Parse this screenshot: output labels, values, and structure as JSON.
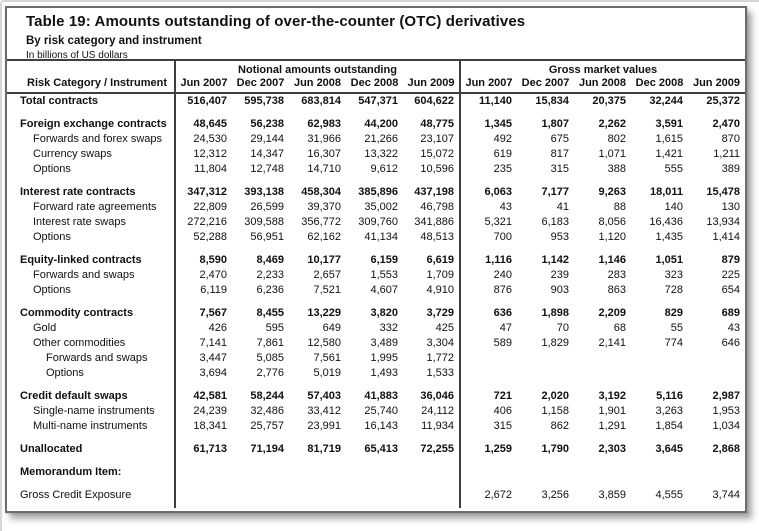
{
  "card": {
    "title": "Table 19: Amounts outstanding of over-the-counter (OTC) derivatives",
    "subtitle": "By risk category and instrument",
    "unit_note": "In billions of US dollars"
  },
  "table": {
    "row_header": "Risk Category / Instrument",
    "group_headers": [
      "Notional amounts outstanding",
      "Gross market values"
    ],
    "columns": [
      "Jun 2007",
      "Dec 2007",
      "Jun 2008",
      "Dec 2008",
      "Jun 2009"
    ],
    "rows": [
      {
        "label": "Total contracts",
        "cls": "bold",
        "notional": [
          "516,407",
          "595,738",
          "683,814",
          "547,371",
          "604,622"
        ],
        "gmv": [
          "11,140",
          "15,834",
          "20,375",
          "32,244",
          "25,372"
        ]
      },
      {
        "label": "Foreign exchange contracts",
        "cls": "bold gap",
        "notional": [
          "48,645",
          "56,238",
          "62,983",
          "44,200",
          "48,775"
        ],
        "gmv": [
          "1,345",
          "1,807",
          "2,262",
          "3,591",
          "2,470"
        ]
      },
      {
        "label": "Forwards and forex swaps",
        "cls": "ind1",
        "notional": [
          "24,530",
          "29,144",
          "31,966",
          "21,266",
          "23,107"
        ],
        "gmv": [
          "492",
          "675",
          "802",
          "1,615",
          "870"
        ]
      },
      {
        "label": "Currency swaps",
        "cls": "ind1",
        "notional": [
          "12,312",
          "14,347",
          "16,307",
          "13,322",
          "15,072"
        ],
        "gmv": [
          "619",
          "817",
          "1,071",
          "1,421",
          "1,211"
        ]
      },
      {
        "label": "Options",
        "cls": "ind1",
        "notional": [
          "11,804",
          "12,748",
          "14,710",
          "9,612",
          "10,596"
        ],
        "gmv": [
          "235",
          "315",
          "388",
          "555",
          "389"
        ]
      },
      {
        "label": "Interest rate contracts",
        "cls": "bold gap",
        "notional": [
          "347,312",
          "393,138",
          "458,304",
          "385,896",
          "437,198"
        ],
        "gmv": [
          "6,063",
          "7,177",
          "9,263",
          "18,011",
          "15,478"
        ]
      },
      {
        "label": "Forward rate agreements",
        "cls": "ind1",
        "notional": [
          "22,809",
          "26,599",
          "39,370",
          "35,002",
          "46,798"
        ],
        "gmv": [
          "43",
          "41",
          "88",
          "140",
          "130"
        ]
      },
      {
        "label": "Interest rate swaps",
        "cls": "ind1",
        "notional": [
          "272,216",
          "309,588",
          "356,772",
          "309,760",
          "341,886"
        ],
        "gmv": [
          "5,321",
          "6,183",
          "8,056",
          "16,436",
          "13,934"
        ]
      },
      {
        "label": "Options",
        "cls": "ind1",
        "notional": [
          "52,288",
          "56,951",
          "62,162",
          "41,134",
          "48,513"
        ],
        "gmv": [
          "700",
          "953",
          "1,120",
          "1,435",
          "1,414"
        ]
      },
      {
        "label": "Equity-linked contracts",
        "cls": "bold gap",
        "notional": [
          "8,590",
          "8,469",
          "10,177",
          "6,159",
          "6,619"
        ],
        "gmv": [
          "1,116",
          "1,142",
          "1,146",
          "1,051",
          "879"
        ]
      },
      {
        "label": "Forwards and swaps",
        "cls": "ind1",
        "notional": [
          "2,470",
          "2,233",
          "2,657",
          "1,553",
          "1,709"
        ],
        "gmv": [
          "240",
          "239",
          "283",
          "323",
          "225"
        ]
      },
      {
        "label": "Options",
        "cls": "ind1",
        "notional": [
          "6,119",
          "6,236",
          "7,521",
          "4,607",
          "4,910"
        ],
        "gmv": [
          "876",
          "903",
          "863",
          "728",
          "654"
        ]
      },
      {
        "label": "Commodity contracts",
        "cls": "bold gap",
        "notional": [
          "7,567",
          "8,455",
          "13,229",
          "3,820",
          "3,729"
        ],
        "gmv": [
          "636",
          "1,898",
          "2,209",
          "829",
          "689"
        ]
      },
      {
        "label": "Gold",
        "cls": "ind1",
        "notional": [
          "426",
          "595",
          "649",
          "332",
          "425"
        ],
        "gmv": [
          "47",
          "70",
          "68",
          "55",
          "43"
        ]
      },
      {
        "label": "Other commodities",
        "cls": "ind1",
        "notional": [
          "7,141",
          "7,861",
          "12,580",
          "3,489",
          "3,304"
        ],
        "gmv": [
          "589",
          "1,829",
          "2,141",
          "774",
          "646"
        ]
      },
      {
        "label": "Forwards and swaps",
        "cls": "ind2",
        "notional": [
          "3,447",
          "5,085",
          "7,561",
          "1,995",
          "1,772"
        ],
        "gmv": [
          "",
          "",
          "",
          "",
          ""
        ]
      },
      {
        "label": "Options",
        "cls": "ind2",
        "notional": [
          "3,694",
          "2,776",
          "5,019",
          "1,493",
          "1,533"
        ],
        "gmv": [
          "",
          "",
          "",
          "",
          ""
        ]
      },
      {
        "label": "Credit default swaps",
        "cls": "bold gap",
        "notional": [
          "42,581",
          "58,244",
          "57,403",
          "41,883",
          "36,046"
        ],
        "gmv": [
          "721",
          "2,020",
          "3,192",
          "5,116",
          "2,987"
        ]
      },
      {
        "label": "Single-name instruments",
        "cls": "ind1",
        "notional": [
          "24,239",
          "32,486",
          "33,412",
          "25,740",
          "24,112"
        ],
        "gmv": [
          "406",
          "1,158",
          "1,901",
          "3,263",
          "1,953"
        ]
      },
      {
        "label": "Multi-name instruments",
        "cls": "ind1",
        "notional": [
          "18,341",
          "25,757",
          "23,991",
          "16,143",
          "11,934"
        ],
        "gmv": [
          "315",
          "862",
          "1,291",
          "1,854",
          "1,034"
        ]
      },
      {
        "label": "Unallocated",
        "cls": "bold gap",
        "notional": [
          "61,713",
          "71,194",
          "81,719",
          "65,413",
          "72,255"
        ],
        "gmv": [
          "1,259",
          "1,790",
          "2,303",
          "3,645",
          "2,868"
        ]
      },
      {
        "label": "Memorandum Item:",
        "cls": "bold gap",
        "notional": [
          "",
          "",
          "",
          "",
          ""
        ],
        "gmv": [
          "",
          "",
          "",
          "",
          ""
        ]
      },
      {
        "label": "Gross Credit Exposure",
        "cls": "gap",
        "notional": [
          "",
          "",
          "",
          "",
          ""
        ],
        "gmv": [
          "2,672",
          "3,256",
          "3,859",
          "4,555",
          "3,744"
        ]
      }
    ]
  },
  "colors": {
    "grid_line": "#3f3f3f",
    "card_border": "#6b6b6b",
    "text": "#111111",
    "background": "#ffffff"
  }
}
